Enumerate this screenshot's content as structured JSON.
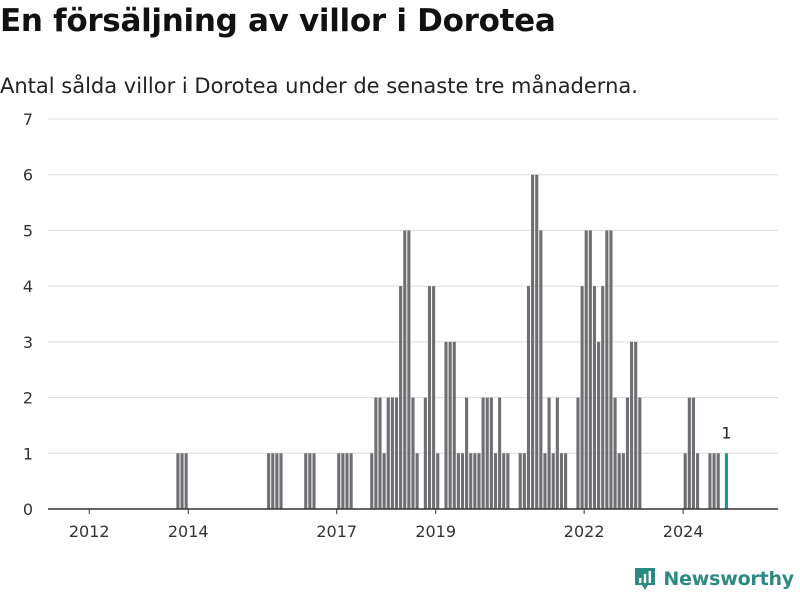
{
  "title": "En försäljning av villor i Dorotea",
  "subtitle": "Antal sålda villor i Dorotea under de senaste tre månaderna.",
  "brand": {
    "name": "Newsworthy",
    "logo_icon": "newsworthy-chart-logo-icon"
  },
  "colors": {
    "bar": "#707074",
    "highlight": "#1a9a90",
    "grid": "#dcdcdc",
    "axis": "#333333",
    "brand": "#2d8a83"
  },
  "chart_data": {
    "type": "bar",
    "x_range": [
      "2011-03",
      "2025-11"
    ],
    "ylim": [
      0,
      7
    ],
    "y_ticks": [
      0,
      1,
      2,
      3,
      4,
      5,
      6,
      7
    ],
    "x_ticks": [
      {
        "label": "2012",
        "month": "2012-01"
      },
      {
        "label": "2014",
        "month": "2014-01"
      },
      {
        "label": "2017",
        "month": "2017-01"
      },
      {
        "label": "2019",
        "month": "2019-01"
      },
      {
        "label": "2022",
        "month": "2022-01"
      },
      {
        "label": "2024",
        "month": "2024-01"
      }
    ],
    "grid": true,
    "highlight_label": "1",
    "bars": [
      {
        "month": "2013-10",
        "value": 1
      },
      {
        "month": "2013-11",
        "value": 1
      },
      {
        "month": "2013-12",
        "value": 1
      },
      {
        "month": "2015-08",
        "value": 1
      },
      {
        "month": "2015-09",
        "value": 1
      },
      {
        "month": "2015-10",
        "value": 1
      },
      {
        "month": "2015-11",
        "value": 1
      },
      {
        "month": "2016-05",
        "value": 1
      },
      {
        "month": "2016-06",
        "value": 1
      },
      {
        "month": "2016-07",
        "value": 1
      },
      {
        "month": "2017-01",
        "value": 1
      },
      {
        "month": "2017-02",
        "value": 1
      },
      {
        "month": "2017-03",
        "value": 1
      },
      {
        "month": "2017-04",
        "value": 1
      },
      {
        "month": "2017-09",
        "value": 1
      },
      {
        "month": "2017-10",
        "value": 2
      },
      {
        "month": "2017-11",
        "value": 2
      },
      {
        "month": "2017-12",
        "value": 1
      },
      {
        "month": "2018-01",
        "value": 2
      },
      {
        "month": "2018-02",
        "value": 2
      },
      {
        "month": "2018-03",
        "value": 2
      },
      {
        "month": "2018-04",
        "value": 4
      },
      {
        "month": "2018-05",
        "value": 5
      },
      {
        "month": "2018-06",
        "value": 5
      },
      {
        "month": "2018-07",
        "value": 2
      },
      {
        "month": "2018-08",
        "value": 1
      },
      {
        "month": "2018-10",
        "value": 2
      },
      {
        "month": "2018-11",
        "value": 4
      },
      {
        "month": "2018-12",
        "value": 4
      },
      {
        "month": "2019-01",
        "value": 1
      },
      {
        "month": "2019-03",
        "value": 3
      },
      {
        "month": "2019-04",
        "value": 3
      },
      {
        "month": "2019-05",
        "value": 3
      },
      {
        "month": "2019-06",
        "value": 1
      },
      {
        "month": "2019-07",
        "value": 1
      },
      {
        "month": "2019-08",
        "value": 2
      },
      {
        "month": "2019-09",
        "value": 1
      },
      {
        "month": "2019-10",
        "value": 1
      },
      {
        "month": "2019-11",
        "value": 1
      },
      {
        "month": "2019-12",
        "value": 2
      },
      {
        "month": "2020-01",
        "value": 2
      },
      {
        "month": "2020-02",
        "value": 2
      },
      {
        "month": "2020-03",
        "value": 1
      },
      {
        "month": "2020-04",
        "value": 2
      },
      {
        "month": "2020-05",
        "value": 1
      },
      {
        "month": "2020-06",
        "value": 1
      },
      {
        "month": "2020-09",
        "value": 1
      },
      {
        "month": "2020-10",
        "value": 1
      },
      {
        "month": "2020-11",
        "value": 4
      },
      {
        "month": "2020-12",
        "value": 6
      },
      {
        "month": "2021-01",
        "value": 6
      },
      {
        "month": "2021-02",
        "value": 5
      },
      {
        "month": "2021-03",
        "value": 1
      },
      {
        "month": "2021-04",
        "value": 2
      },
      {
        "month": "2021-05",
        "value": 1
      },
      {
        "month": "2021-06",
        "value": 2
      },
      {
        "month": "2021-07",
        "value": 1
      },
      {
        "month": "2021-08",
        "value": 1
      },
      {
        "month": "2021-11",
        "value": 2
      },
      {
        "month": "2021-12",
        "value": 4
      },
      {
        "month": "2022-01",
        "value": 5
      },
      {
        "month": "2022-02",
        "value": 5
      },
      {
        "month": "2022-03",
        "value": 4
      },
      {
        "month": "2022-04",
        "value": 3
      },
      {
        "month": "2022-05",
        "value": 4
      },
      {
        "month": "2022-06",
        "value": 5
      },
      {
        "month": "2022-07",
        "value": 5
      },
      {
        "month": "2022-08",
        "value": 2
      },
      {
        "month": "2022-09",
        "value": 1
      },
      {
        "month": "2022-10",
        "value": 1
      },
      {
        "month": "2022-11",
        "value": 2
      },
      {
        "month": "2022-12",
        "value": 3
      },
      {
        "month": "2023-01",
        "value": 3
      },
      {
        "month": "2023-02",
        "value": 2
      },
      {
        "month": "2024-01",
        "value": 1
      },
      {
        "month": "2024-02",
        "value": 2
      },
      {
        "month": "2024-03",
        "value": 2
      },
      {
        "month": "2024-04",
        "value": 1
      },
      {
        "month": "2024-07",
        "value": 1
      },
      {
        "month": "2024-08",
        "value": 1
      },
      {
        "month": "2024-09",
        "value": 1
      },
      {
        "month": "2024-11",
        "value": 1,
        "highlight": true
      }
    ]
  }
}
